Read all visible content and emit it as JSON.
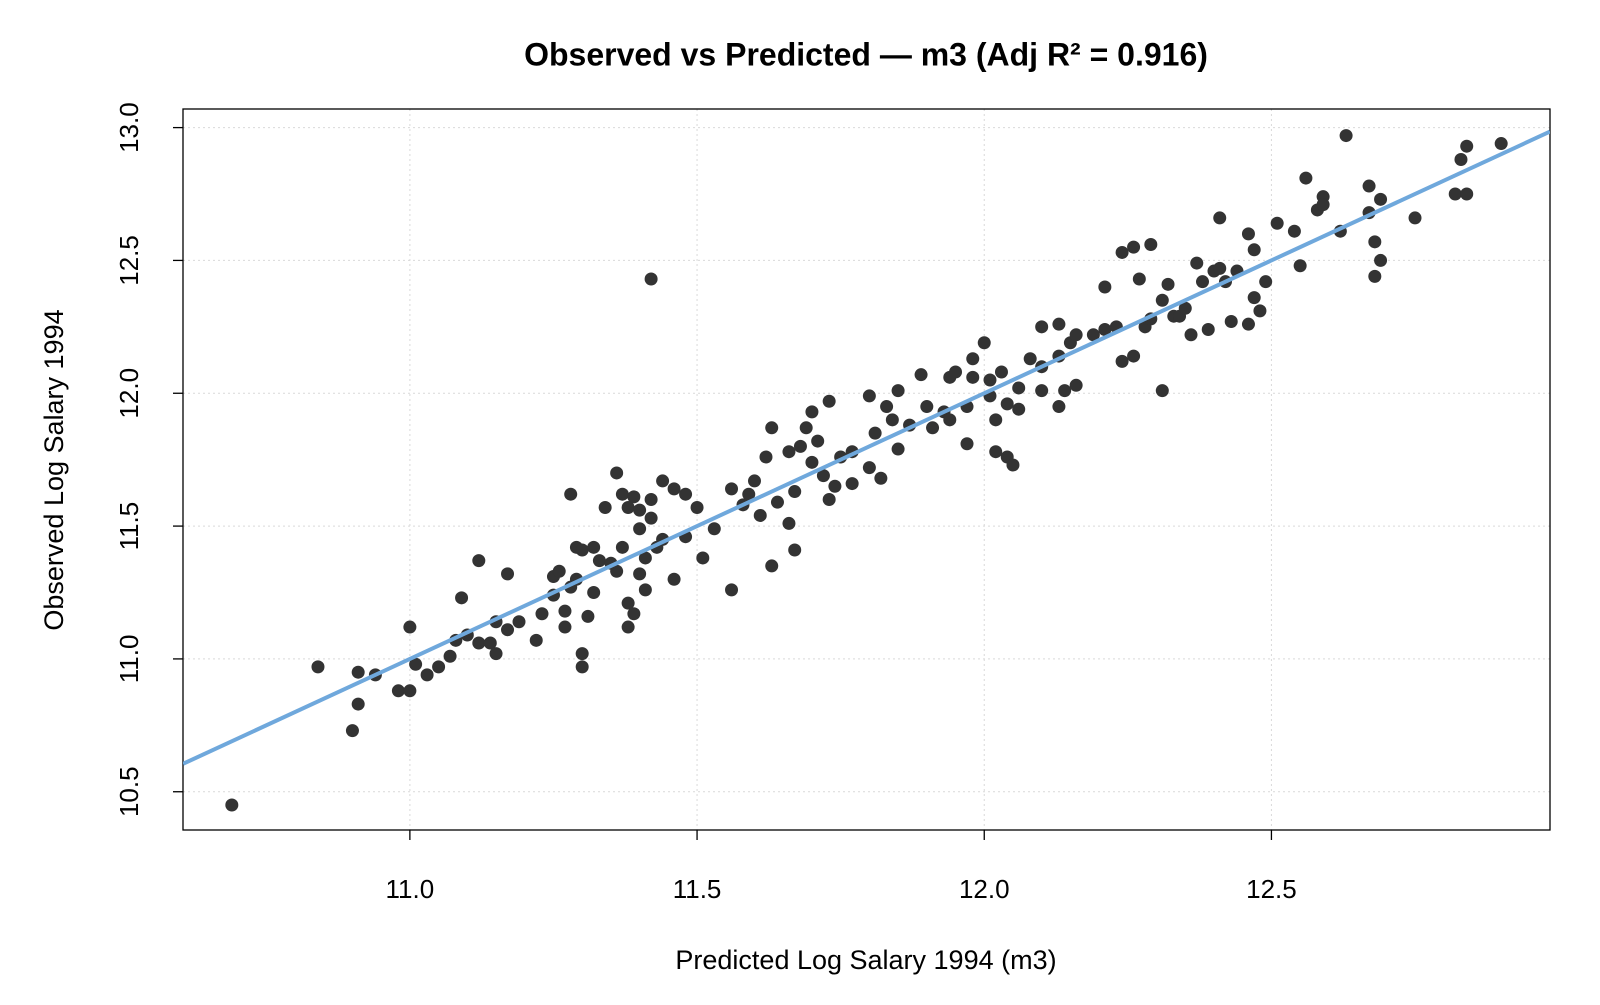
{
  "chart_data": {
    "type": "scatter",
    "title": "Observed vs Predicted — m3  (Adj R² = 0.916)",
    "x_label": "Predicted Log Salary 1994 (m3)",
    "y_label": "Observed Log Salary 1994",
    "xlim": [
      10.605,
      12.985
    ],
    "ylim": [
      10.356,
      13.07
    ],
    "xticks": [
      {
        "value": 11,
        "label": "11.0"
      },
      11.5,
      {
        "value": 12,
        "label": "12.0"
      },
      12.5
    ],
    "yticks": [
      10.5,
      {
        "value": 11,
        "label": "11.0"
      },
      11.5,
      {
        "value": 12,
        "label": "12.0"
      },
      12.5,
      {
        "value": 13,
        "label": "13.0"
      }
    ],
    "grid": true,
    "color": "#333333",
    "fit_line": {
      "color": "#6fa8dc",
      "x": [
        10.605,
        12.985
      ],
      "y": [
        10.605,
        12.985
      ]
    },
    "x": [
      10.69,
      10.84,
      10.9,
      10.91,
      10.91,
      10.94,
      10.98,
      11.0,
      11.0,
      11.01,
      11.03,
      11.05,
      11.07,
      11.08,
      11.09,
      11.1,
      11.12,
      11.12,
      11.14,
      11.15,
      11.15,
      11.17,
      11.17,
      11.19,
      11.22,
      11.23,
      11.25,
      11.25,
      11.26,
      11.27,
      11.27,
      11.28,
      11.28,
      11.29,
      11.29,
      11.3,
      11.3,
      11.3,
      11.31,
      11.32,
      11.32,
      11.33,
      11.34,
      11.35,
      11.36,
      11.36,
      11.37,
      11.37,
      11.38,
      11.38,
      11.38,
      11.39,
      11.39,
      11.4,
      11.4,
      11.4,
      11.41,
      11.41,
      11.42,
      11.42,
      11.42,
      11.43,
      11.44,
      11.44,
      11.46,
      11.46,
      11.48,
      11.48,
      11.5,
      11.51,
      11.53,
      11.56,
      11.56,
      11.58,
      11.59,
      11.6,
      11.61,
      11.62,
      11.63,
      11.63,
      11.64,
      11.66,
      11.66,
      11.67,
      11.67,
      11.68,
      11.69,
      11.7,
      11.7,
      11.71,
      11.72,
      11.73,
      11.73,
      11.74,
      11.75,
      11.77,
      11.77,
      11.8,
      11.8,
      11.81,
      11.82,
      11.83,
      11.84,
      11.85,
      11.85,
      11.87,
      11.89,
      11.9,
      11.91,
      11.93,
      11.94,
      11.94,
      11.95,
      11.97,
      11.97,
      11.98,
      11.98,
      12.0,
      12.01,
      12.01,
      12.02,
      12.02,
      12.03,
      12.04,
      12.04,
      12.05,
      12.06,
      12.06,
      12.08,
      12.1,
      12.1,
      12.1,
      12.13,
      12.13,
      12.13,
      12.14,
      12.15,
      12.16,
      12.16,
      12.19,
      12.21,
      12.21,
      12.23,
      12.24,
      12.24,
      12.26,
      12.26,
      12.27,
      12.28,
      12.29,
      12.29,
      12.31,
      12.31,
      12.32,
      12.33,
      12.34,
      12.35,
      12.36,
      12.37,
      12.38,
      12.39,
      12.4,
      12.41,
      12.42,
      12.43,
      12.44,
      12.41,
      12.46,
      12.46,
      12.47,
      12.47,
      12.48,
      12.49,
      12.51,
      12.54,
      12.55,
      12.56,
      12.58,
      12.59,
      12.59,
      12.62,
      12.63,
      12.67,
      12.67,
      12.68,
      12.68,
      12.69,
      12.69,
      12.75,
      12.82,
      12.83,
      12.84,
      12.84,
      12.9
    ],
    "values": [
      10.45,
      10.97,
      10.73,
      10.83,
      10.95,
      10.94,
      10.88,
      11.12,
      10.88,
      10.98,
      10.94,
      10.97,
      11.01,
      11.07,
      11.23,
      11.09,
      11.37,
      11.06,
      11.06,
      11.02,
      11.14,
      11.32,
      11.11,
      11.14,
      11.07,
      11.17,
      11.24,
      11.31,
      11.33,
      11.18,
      11.12,
      11.27,
      11.62,
      11.42,
      11.3,
      11.41,
      10.97,
      11.02,
      11.16,
      11.25,
      11.42,
      11.37,
      11.57,
      11.36,
      11.33,
      11.7,
      11.42,
      11.62,
      11.21,
      11.57,
      11.12,
      11.17,
      11.61,
      11.49,
      11.32,
      11.56,
      11.38,
      11.26,
      12.43,
      11.6,
      11.53,
      11.42,
      11.67,
      11.45,
      11.3,
      11.64,
      11.62,
      11.46,
      11.57,
      11.38,
      11.49,
      11.26,
      11.64,
      11.58,
      11.62,
      11.67,
      11.54,
      11.76,
      11.87,
      11.35,
      11.59,
      11.78,
      11.51,
      11.63,
      11.41,
      11.8,
      11.87,
      11.74,
      11.93,
      11.82,
      11.69,
      11.6,
      11.97,
      11.65,
      11.76,
      11.66,
      11.78,
      11.72,
      11.99,
      11.85,
      11.68,
      11.95,
      11.9,
      12.01,
      11.79,
      11.88,
      12.07,
      11.95,
      11.87,
      11.93,
      11.9,
      12.06,
      12.08,
      11.81,
      11.95,
      12.06,
      12.13,
      12.19,
      11.99,
      12.05,
      11.9,
      11.78,
      12.08,
      11.96,
      11.76,
      11.73,
      12.02,
      11.94,
      12.13,
      12.01,
      12.25,
      12.1,
      12.14,
      11.95,
      12.26,
      12.01,
      12.19,
      12.22,
      12.03,
      12.22,
      12.4,
      12.24,
      12.25,
      12.53,
      12.12,
      12.14,
      12.55,
      12.43,
      12.25,
      12.56,
      12.28,
      12.35,
      12.01,
      12.41,
      12.29,
      12.29,
      12.32,
      12.22,
      12.49,
      12.42,
      12.24,
      12.46,
      12.47,
      12.42,
      12.27,
      12.46,
      12.66,
      12.6,
      12.26,
      12.54,
      12.36,
      12.31,
      12.42,
      12.64,
      12.61,
      12.48,
      12.81,
      12.69,
      12.74,
      12.71,
      12.61,
      12.97,
      12.68,
      12.78,
      12.44,
      12.57,
      12.73,
      12.5,
      12.66,
      12.75,
      12.88,
      12.93,
      12.75,
      12.94
    ]
  }
}
